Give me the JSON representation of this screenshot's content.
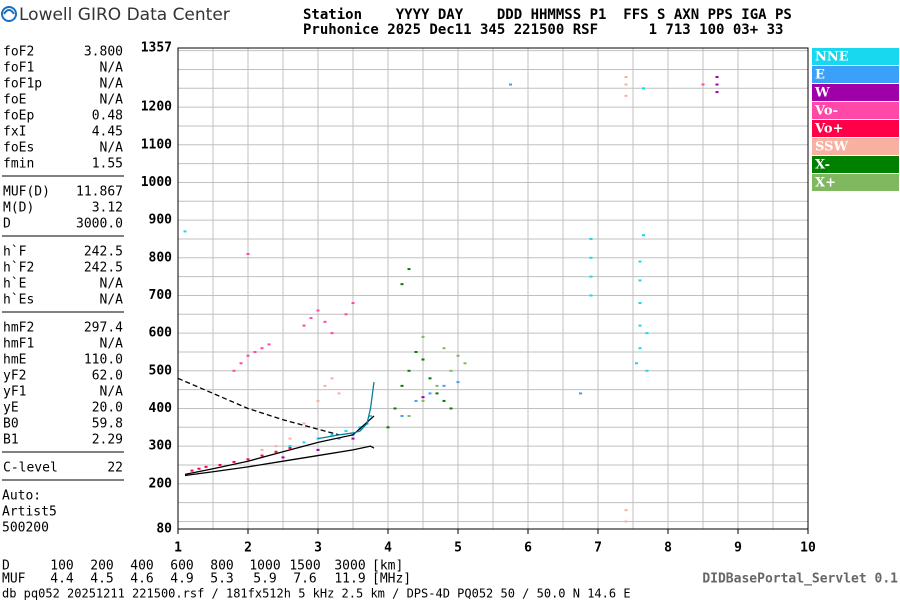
{
  "header": {
    "logo_text": "Lowell GIRO Data Center",
    "station_line1": "Station    YYYY DAY    DDD HHMMSS P1  FFS S AXN PPS IGA PS",
    "station_line2": "Pruhonice 2025 Dec11 345 221500 RSF      1 713 100 03+ 33"
  },
  "parameter_groups": [
    [
      {
        "name": "foF2",
        "value": "3.800"
      },
      {
        "name": "foF1",
        "value": "N/A"
      },
      {
        "name": "foF1p",
        "value": "N/A"
      },
      {
        "name": "foE",
        "value": "N/A"
      },
      {
        "name": "foEp",
        "value": "0.48"
      },
      {
        "name": "fxI",
        "value": "4.45"
      },
      {
        "name": "foEs",
        "value": "N/A"
      },
      {
        "name": "fmin",
        "value": "1.55"
      }
    ],
    [
      {
        "name": "MUF(D)",
        "value": "11.867"
      },
      {
        "name": "M(D)",
        "value": "3.12"
      },
      {
        "name": "D",
        "value": "3000.0"
      }
    ],
    [
      {
        "name": "h`F",
        "value": "242.5"
      },
      {
        "name": "h`F2",
        "value": "242.5"
      },
      {
        "name": "h`E",
        "value": "N/A"
      },
      {
        "name": "h`Es",
        "value": "N/A"
      }
    ],
    [
      {
        "name": "hmF2",
        "value": "297.4"
      },
      {
        "name": "hmF1",
        "value": "N/A"
      },
      {
        "name": "hmE",
        "value": "110.0"
      },
      {
        "name": "yF2",
        "value": "62.0"
      },
      {
        "name": "yF1",
        "value": "N/A"
      },
      {
        "name": "yE",
        "value": "20.0"
      },
      {
        "name": "B0",
        "value": "59.8"
      },
      {
        "name": "B1",
        "value": "2.29"
      }
    ],
    [
      {
        "name": "C-level",
        "value": "22"
      }
    ]
  ],
  "auto_info": [
    "Auto:",
    "Artist5",
    "500200"
  ],
  "chart_data": {
    "type": "scatter",
    "xlim": [
      1,
      10
    ],
    "xticks": [
      1,
      2,
      3,
      4,
      5,
      6,
      7,
      8,
      9,
      10
    ],
    "ylim": [
      80,
      1357
    ],
    "yticks": [
      80,
      200,
      300,
      400,
      500,
      600,
      700,
      800,
      900,
      1000,
      1100,
      1200,
      1357
    ],
    "grid": true,
    "xgrid": [
      1.5,
      2.5,
      3.5,
      4.5,
      5.5,
      6.5,
      7.5,
      8.5,
      9.5,
      2,
      3,
      4,
      5,
      6,
      7,
      8,
      9
    ],
    "ygrid": [
      100,
      150,
      250,
      350,
      450,
      550,
      650,
      750,
      850,
      950,
      1050,
      1150,
      1250,
      1300,
      1350
    ],
    "series": [
      {
        "name": "NNE",
        "color": "#18d8f0",
        "x": [
          2.6,
          2.8,
          3.0,
          3.2,
          3.4,
          3.6,
          3.7,
          3.75,
          6.9,
          6.9,
          6.9,
          6.9,
          7.55,
          7.6,
          7.6,
          7.6,
          7.6,
          7.6,
          7.65,
          7.7,
          7.7,
          7.65,
          1.1
        ],
        "y": [
          300,
          310,
          320,
          330,
          340,
          350,
          360,
          380,
          700,
          750,
          800,
          850,
          520,
          560,
          620,
          680,
          740,
          790,
          860,
          600,
          500,
          1250,
          870
        ]
      },
      {
        "name": "E",
        "color": "#3ba0f8",
        "x": [
          3.3,
          3.5,
          3.6,
          3.7,
          4.2,
          4.4,
          4.6,
          4.8,
          5.0,
          6.75,
          5.75
        ],
        "y": [
          320,
          330,
          345,
          360,
          380,
          420,
          440,
          460,
          470,
          440,
          1260
        ]
      },
      {
        "name": "W",
        "color": "#a000a8",
        "x": [
          8.7,
          8.7,
          8.7,
          2.5,
          3.0,
          3.5,
          4.5
        ],
        "y": [
          1240,
          1260,
          1280,
          270,
          290,
          320,
          430
        ]
      },
      {
        "name": "Vo-",
        "color": "#ff48a8",
        "x": [
          1.8,
          1.9,
          2.0,
          2.1,
          2.2,
          2.3,
          2.8,
          2.9,
          3.0,
          3.1,
          3.2,
          3.4,
          3.5,
          2.0,
          8.5
        ],
        "y": [
          500,
          520,
          540,
          550,
          560,
          570,
          620,
          640,
          660,
          630,
          600,
          650,
          680,
          810,
          1260
        ]
      },
      {
        "name": "Vo+",
        "color": "#ff0048",
        "x": [
          1.2,
          1.3,
          1.4,
          1.6,
          1.8,
          2.0,
          2.2,
          2.4,
          2.6
        ],
        "y": [
          235,
          240,
          245,
          250,
          258,
          265,
          275,
          285,
          295
        ]
      },
      {
        "name": "SSW",
        "color": "#f8b0a0",
        "x": [
          2.2,
          2.4,
          2.6,
          2.8,
          3.0,
          3.1,
          3.2,
          3.3,
          7.4,
          7.4,
          7.4,
          7.4,
          7.4
        ],
        "y": [
          290,
          300,
          320,
          360,
          420,
          460,
          480,
          440,
          1230,
          1260,
          1280,
          130,
          100
        ]
      },
      {
        "name": "X-",
        "color": "#008000",
        "x": [
          4.0,
          4.1,
          4.2,
          4.3,
          4.4,
          4.5,
          4.6,
          4.7,
          4.8,
          4.9,
          4.2,
          4.3
        ],
        "y": [
          350,
          400,
          460,
          500,
          550,
          530,
          480,
          440,
          420,
          400,
          730,
          770
        ]
      },
      {
        "name": "X+",
        "color": "#80b860",
        "x": [
          4.3,
          4.5,
          4.7,
          4.9,
          5.0,
          5.1,
          4.5,
          4.8
        ],
        "y": [
          380,
          420,
          460,
          500,
          540,
          520,
          590,
          560
        ]
      }
    ],
    "lines": [
      {
        "color": "#000000",
        "dash": true,
        "x": [
          1.0,
          1.5,
          2.0,
          2.5,
          3.0,
          3.3
        ],
        "y": [
          480,
          440,
          400,
          370,
          345,
          330
        ]
      },
      {
        "color": "#000000",
        "dash": false,
        "x": [
          1.1,
          1.5,
          2.0,
          2.5,
          3.0,
          3.5,
          3.75,
          3.8
        ],
        "y": [
          222,
          232,
          245,
          260,
          275,
          290,
          300,
          295
        ]
      },
      {
        "color": "#000000",
        "dash": false,
        "x": [
          1.1,
          1.5,
          2.0,
          2.5,
          3.0,
          3.5,
          3.8
        ],
        "y": [
          225,
          240,
          260,
          285,
          310,
          330,
          380
        ]
      },
      {
        "color": "#0080a0",
        "dash": false,
        "x": [
          3.0,
          3.3,
          3.5,
          3.6,
          3.7,
          3.75,
          3.8
        ],
        "y": [
          320,
          330,
          335,
          340,
          360,
          400,
          470
        ]
      }
    ]
  },
  "distance_table": [
    {
      "label": "D",
      "values": [
        100,
        200,
        400,
        600,
        800,
        1000,
        1500,
        3000
      ],
      "unit": "[km]"
    },
    {
      "label": "MUF",
      "values": [
        4.4,
        4.5,
        4.6,
        4.9,
        5.3,
        5.9,
        7.6,
        11.9
      ],
      "unit": "[MHz]"
    }
  ],
  "footer": "db pq052 20251211 221500.rsf / 181fx512h 5 kHz 2.5 km / DPS-4D PQ052 50 / 50.0 N 14.6 E",
  "servlet": "DIDBasePortal_Servlet 0.1"
}
